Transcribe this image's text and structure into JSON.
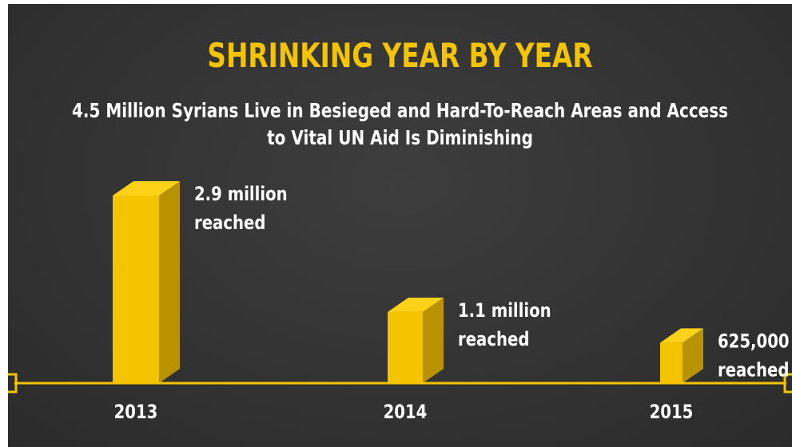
{
  "colors": {
    "background": "#353535",
    "accent": "#f5c400",
    "bar_front": "#f5c400",
    "bar_side": "#b89200",
    "bar_top": "#ffd21a",
    "text": "#ffffff"
  },
  "chart_data": {
    "type": "bar",
    "title": "SHRINKING YEAR BY YEAR",
    "subtitle": "4.5 Million Syrians Live in Besieged and Hard-To-Reach Areas and Access to Vital UN Aid Is Diminishing",
    "categories": [
      "2013",
      "2014",
      "2015"
    ],
    "values": [
      2900000,
      1100000,
      625000
    ],
    "data_labels": [
      [
        "2.9 million",
        "reached"
      ],
      [
        "1.1 million",
        "reached"
      ],
      [
        "625,000",
        "reached"
      ]
    ],
    "xlabel": "",
    "ylabel": "",
    "grid": false,
    "style": "3d-bars-on-timeline"
  }
}
